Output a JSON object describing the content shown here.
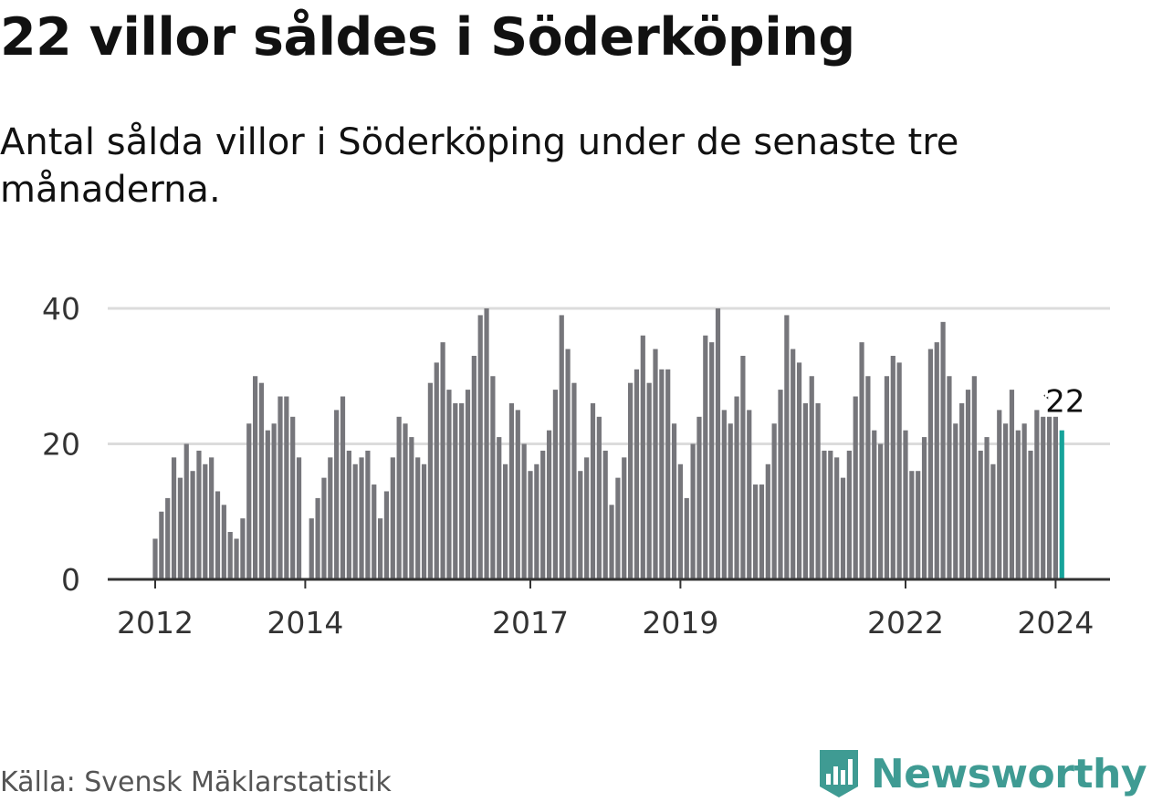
{
  "title": "22 villor såldes i Söderköping",
  "subtitle": "Antal sålda villor i Söderköping under de senaste tre månaderna.",
  "source": "Källa: Svensk Mäklarstatistik",
  "brand": {
    "name": "Newsworthy",
    "icon": "newsworthy-logo-icon",
    "color": "#3f9b93"
  },
  "colors": {
    "bar": "#76767b",
    "highlight": "#16a39a",
    "grid": "#dcdcdc",
    "axis": "#333333"
  },
  "chart_data": {
    "type": "bar",
    "title": "22 villor såldes i Söderköping",
    "xlabel": "",
    "ylabel": "",
    "ylim": [
      0,
      40
    ],
    "yticks": [
      0,
      20,
      40
    ],
    "grid": true,
    "start": "2012-01",
    "frequency": "monthly",
    "xtick_labels": [
      {
        "label": "2012",
        "index": 0
      },
      {
        "label": "2014",
        "index": 24
      },
      {
        "label": "2017",
        "index": 60
      },
      {
        "label": "2019",
        "index": 84
      },
      {
        "label": "2022",
        "index": 120
      },
      {
        "label": "2024",
        "index": 144
      }
    ],
    "values": [
      6,
      10,
      12,
      18,
      15,
      20,
      16,
      19,
      17,
      18,
      13,
      11,
      7,
      6,
      9,
      23,
      30,
      29,
      22,
      23,
      27,
      27,
      24,
      18,
      0,
      9,
      12,
      15,
      18,
      25,
      27,
      19,
      17,
      18,
      19,
      14,
      9,
      13,
      18,
      24,
      23,
      21,
      18,
      17,
      29,
      32,
      35,
      28,
      26,
      26,
      28,
      33,
      39,
      40,
      30,
      21,
      17,
      26,
      25,
      20,
      16,
      17,
      19,
      22,
      28,
      39,
      34,
      29,
      16,
      18,
      26,
      24,
      19,
      11,
      15,
      18,
      29,
      31,
      36,
      29,
      34,
      31,
      31,
      23,
      17,
      12,
      20,
      24,
      36,
      35,
      40,
      25,
      23,
      27,
      33,
      25,
      14,
      14,
      17,
      23,
      28,
      39,
      34,
      32,
      26,
      30,
      26,
      19,
      19,
      18,
      15,
      19,
      27,
      35,
      30,
      22,
      20,
      30,
      33,
      32,
      22,
      16,
      16,
      21,
      34,
      35,
      38,
      30,
      23,
      26,
      28,
      30,
      19,
      21,
      17,
      25,
      23,
      28,
      22,
      23,
      19,
      25,
      24,
      24,
      24,
      22
    ],
    "highlight_index": 145,
    "annotation": {
      "label": "22",
      "index": 145
    }
  }
}
